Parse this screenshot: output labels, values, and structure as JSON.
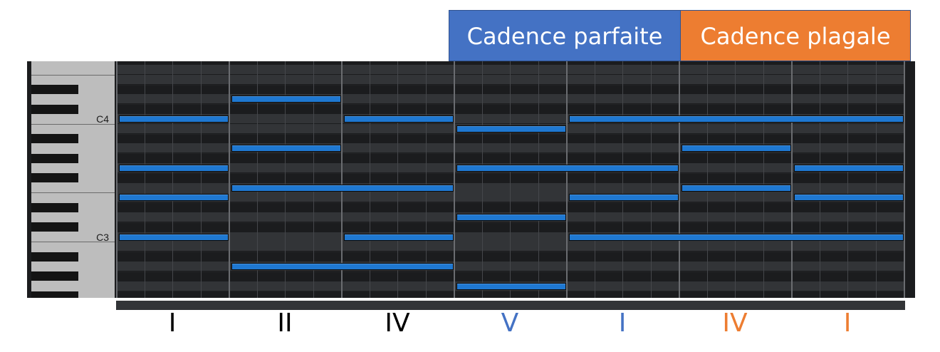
{
  "cadences": {
    "parfaite": {
      "label": "Cadence parfaite",
      "color": "#4472c4"
    },
    "plagale": {
      "label": "Cadence plagale",
      "color": "#ed7d31"
    }
  },
  "keyboard": {
    "labels": [
      {
        "text": "C4",
        "pitch": 60
      },
      {
        "text": "C3",
        "pitch": 48
      }
    ],
    "top_pitch": 65,
    "bottom_pitch": 41
  },
  "chords": [
    {
      "numeral": "I",
      "color": "#000000",
      "pitches": [
        60,
        55,
        52,
        48
      ]
    },
    {
      "numeral": "II",
      "color": "#000000",
      "pitches": [
        62,
        57,
        53,
        45
      ]
    },
    {
      "numeral": "IV",
      "color": "#000000",
      "pitches": [
        60,
        53,
        48,
        45
      ]
    },
    {
      "numeral": "V",
      "color": "#4472c4",
      "pitches": [
        59,
        55,
        50,
        43
      ]
    },
    {
      "numeral": "I",
      "color": "#4472c4",
      "pitches": [
        60,
        55,
        52,
        48
      ]
    },
    {
      "numeral": "IV",
      "color": "#ed7d31",
      "pitches": [
        60,
        57,
        53,
        48
      ]
    },
    {
      "numeral": "I",
      "color": "#ed7d31",
      "pitches": [
        60,
        55,
        52,
        48
      ]
    }
  ]
}
